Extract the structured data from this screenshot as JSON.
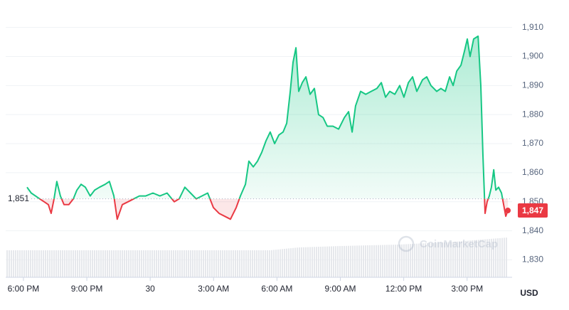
{
  "chart_data": {
    "type": "line",
    "series": [
      {
        "name": null,
        "color": "#16c784",
        "below_color": "#ea3943",
        "x": [
          0.17,
          0.37,
          0.57,
          0.77,
          0.98,
          1.18,
          1.31,
          1.45,
          1.58,
          1.75,
          1.92,
          2.15,
          2.36,
          2.53,
          2.73,
          2.93,
          3.16,
          3.37,
          3.6,
          3.87,
          4.07,
          4.28,
          4.44,
          4.68,
          4.95,
          5.22,
          5.49,
          5.79,
          6.13,
          6.46,
          6.8,
          7.14,
          7.37,
          7.64,
          7.91,
          8.18,
          8.45,
          8.72,
          8.99,
          9.26,
          9.53,
          9.8,
          10.07,
          10.27,
          10.51,
          10.67,
          10.88,
          11.08,
          11.28,
          11.48,
          11.68,
          11.89,
          12.09,
          12.29,
          12.46,
          12.63,
          12.76,
          12.9,
          13.03,
          13.2,
          13.37,
          13.57,
          13.77,
          13.97,
          14.18,
          14.38,
          14.65,
          14.92,
          15.19,
          15.39,
          15.56,
          15.72,
          15.96,
          16.2,
          16.46,
          16.73,
          16.94,
          17.14,
          17.34,
          17.58,
          17.81,
          18.01,
          18.22,
          18.42,
          18.62,
          18.89,
          19.09,
          19.29,
          19.56,
          19.76,
          19.97,
          20.17,
          20.34,
          20.51,
          20.71,
          20.88,
          21.01,
          21.14,
          21.31,
          21.52,
          21.65,
          21.75,
          21.85,
          21.95,
          22.05,
          22.15,
          22.26,
          22.36,
          22.49,
          22.63,
          22.73,
          22.83,
          22.93
        ],
        "values": [
          1855,
          1853,
          1852,
          1851,
          1850,
          1849,
          1846,
          1851,
          1857,
          1852,
          1849,
          1849,
          1851,
          1854,
          1856,
          1855,
          1852,
          1854,
          1855,
          1856,
          1857,
          1852,
          1844,
          1849,
          1850,
          1851,
          1852,
          1852,
          1853,
          1852,
          1853,
          1850,
          1851,
          1855,
          1853,
          1851,
          1852,
          1853,
          1848,
          1846,
          1845,
          1844,
          1848,
          1852,
          1856,
          1864,
          1862,
          1864,
          1867,
          1871,
          1874,
          1870,
          1873,
          1874,
          1877,
          1888,
          1898,
          1903,
          1888,
          1891,
          1893,
          1887,
          1889,
          1880,
          1879,
          1876,
          1876,
          1875,
          1879,
          1881,
          1874,
          1883,
          1888,
          1887,
          1888,
          1889,
          1891,
          1886,
          1888,
          1887,
          1890,
          1886,
          1891,
          1893,
          1888,
          1892,
          1893,
          1890,
          1888,
          1889,
          1888,
          1893,
          1890,
          1895,
          1897,
          1902,
          1906,
          1900,
          1906,
          1907,
          1890,
          1866,
          1846,
          1850,
          1852,
          1855,
          1861,
          1854,
          1855,
          1853,
          1849,
          1845,
          1847
        ]
      }
    ],
    "baseline": {
      "value": 1851,
      "label": "1,851"
    },
    "last_price": {
      "value": 1847,
      "label": "1,847"
    },
    "xlim": [
      -0.84,
      23.13
    ],
    "xticks": [
      {
        "value": 0,
        "label": "6:00 PM"
      },
      {
        "value": 3,
        "label": "9:00 PM"
      },
      {
        "value": 6,
        "label": "30"
      },
      {
        "value": 9,
        "label": "3:00 AM"
      },
      {
        "value": 12,
        "label": "6:00 AM"
      },
      {
        "value": 15,
        "label": "9:00 AM"
      },
      {
        "value": 18,
        "label": "12:00 PM"
      },
      {
        "value": 21,
        "label": "3:00 PM"
      }
    ],
    "ylim": [
      1824,
      1917
    ],
    "yticks": [
      {
        "value": 1830,
        "label": "1,830"
      },
      {
        "value": 1840,
        "label": "1,840"
      },
      {
        "value": 1850,
        "label": "1,850"
      },
      {
        "value": 1860,
        "label": "1,860"
      },
      {
        "value": 1870,
        "label": "1,870"
      },
      {
        "value": 1880,
        "label": "1,880"
      },
      {
        "value": 1890,
        "label": "1,890"
      },
      {
        "value": 1900,
        "label": "1,900"
      },
      {
        "value": 1910,
        "label": "1,910"
      }
    ],
    "grid": true,
    "unit": "USD",
    "watermark": "CoinMarketCap"
  }
}
